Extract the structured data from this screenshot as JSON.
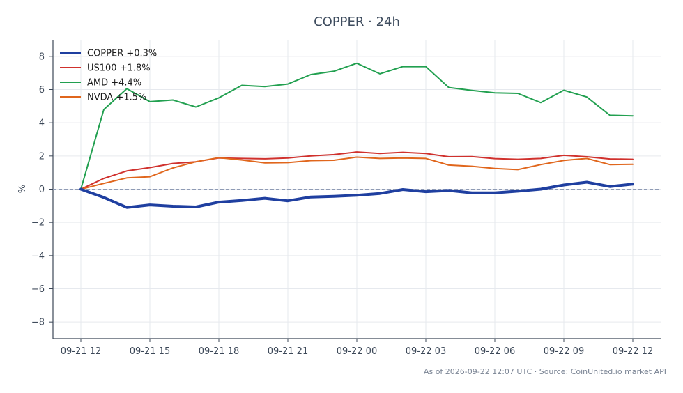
{
  "chart_data": {
    "type": "line",
    "title": "COPPER · 24h",
    "xlabel": "",
    "ylabel": "%",
    "ylim": [
      -9,
      9
    ],
    "yticks": [
      -8,
      -6,
      -4,
      -2,
      0,
      2,
      4,
      6,
      8
    ],
    "ytick_labels": [
      "−8",
      "−6",
      "−4",
      "−2",
      "0",
      "2",
      "4",
      "6",
      "8"
    ],
    "x": [
      "09-21 12",
      "09-21 13",
      "09-21 14",
      "09-21 15",
      "09-21 16",
      "09-21 17",
      "09-21 18",
      "09-21 19",
      "09-21 20",
      "09-21 21",
      "09-21 22",
      "09-21 23",
      "09-22 00",
      "09-22 01",
      "09-22 02",
      "09-22 03",
      "09-22 04",
      "09-22 05",
      "09-22 06",
      "09-22 07",
      "09-22 08",
      "09-22 09",
      "09-22 10",
      "09-22 11",
      "09-22 12"
    ],
    "xtick_labels": [
      "09-21 12",
      "09-21 15",
      "09-21 18",
      "09-21 21",
      "09-22 00",
      "09-22 03",
      "09-22 06",
      "09-22 09",
      "09-22 12"
    ],
    "grid": true,
    "legend_position": "top-left",
    "reference_line": 0,
    "series": [
      {
        "name": "COPPER +0.3%",
        "color": "#1f3fa0",
        "values": [
          0,
          -0.5,
          -1.1,
          -0.95,
          -1.03,
          -1.07,
          -0.78,
          -0.68,
          -0.55,
          -0.7,
          -0.47,
          -0.43,
          -0.37,
          -0.26,
          -0.02,
          -0.15,
          -0.08,
          -0.22,
          -0.22,
          -0.12,
          0.0,
          0.25,
          0.42,
          0.16,
          0.3
        ]
      },
      {
        "name": "US100 +1.8%",
        "color": "#d0312d",
        "values": [
          0,
          0.65,
          1.1,
          1.3,
          1.55,
          1.65,
          1.88,
          1.85,
          1.83,
          1.88,
          2.0,
          2.08,
          2.24,
          2.15,
          2.22,
          2.15,
          1.95,
          1.96,
          1.84,
          1.8,
          1.85,
          2.04,
          1.95,
          1.82,
          1.8
        ]
      },
      {
        "name": "AMD +4.4%",
        "color": "#22a050",
        "values": [
          0,
          4.8,
          6.05,
          5.27,
          5.37,
          4.95,
          5.5,
          6.25,
          6.18,
          6.33,
          6.9,
          7.1,
          7.58,
          6.95,
          7.38,
          7.38,
          6.12,
          5.95,
          5.8,
          5.77,
          5.21,
          5.96,
          5.55,
          4.45,
          4.42
        ]
      },
      {
        "name": "NVDA +1.5%",
        "color": "#e0661c",
        "values": [
          0,
          0.35,
          0.68,
          0.75,
          1.28,
          1.65,
          1.9,
          1.76,
          1.58,
          1.6,
          1.72,
          1.74,
          1.93,
          1.85,
          1.88,
          1.85,
          1.45,
          1.38,
          1.25,
          1.18,
          1.48,
          1.73,
          1.85,
          1.48,
          1.5
        ]
      }
    ]
  },
  "footer": "As of 2026-09-22 12:07 UTC · Source: CoinUnited.io market API"
}
